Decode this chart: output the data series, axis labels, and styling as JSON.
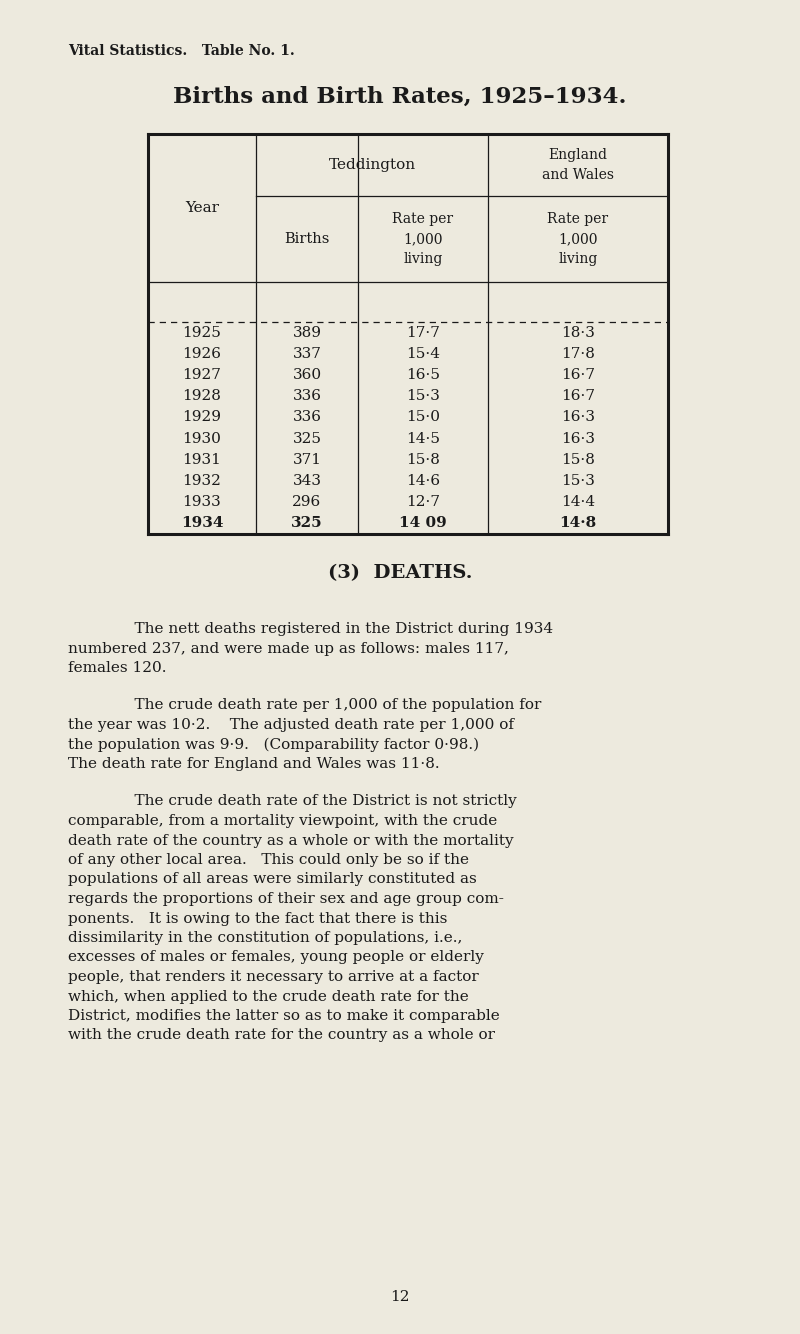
{
  "bg_color": "#edeade",
  "text_color": "#1a1a1a",
  "top_label": "Vital Statistics.   Table No. 1.",
  "title": "Births and Birth Rates, 1925–1934.",
  "teddington_label": "Teddington",
  "england_label": "England\nand Wales",
  "births_label": "Births",
  "rate_label": "Rate per\n1,000\nliving",
  "year_label": "Year",
  "years": [
    "1925",
    "1926",
    "1927",
    "1928",
    "1929",
    "1930",
    "1931",
    "1932",
    "1933",
    "1934"
  ],
  "births": [
    "389",
    "337",
    "360",
    "336",
    "336",
    "325",
    "371",
    "343",
    "296",
    "325"
  ],
  "tedd_rates": [
    "17·7",
    "15·4",
    "16·5",
    "15·3",
    "15·0",
    "14·5",
    "15·8",
    "14·6",
    "12·7",
    "14 09"
  ],
  "eng_rates": [
    "18·3",
    "17·8",
    "16·7",
    "16·7",
    "16·3",
    "16·3",
    "15·8",
    "15·3",
    "14·4",
    "14·8"
  ],
  "deaths_heading": "(3)  DEATHS.",
  "para1_indent": "    The nett deaths registered in the District during 1934",
  "para1_rest": "numbered 237, and were made up as follows: males 117,\nfemales 120.",
  "para2_indent": "    The crude death rate per 1,000 of the population for",
  "para2_rest": "the year was 10·2.    The adjusted death rate per 1,000 of\nthe population was 9·9.   (Comparability factor 0·98.)\nThe death rate for England and Wales was 11·8.",
  "para3_indent": "    The crude death rate of the District is not strictly",
  "para3_rest": "comparable, from a mortality viewpoint, with the crude\ndeath rate of the country as a whole or with the mortality\nof any other local area.   This could only be so if the\npopulations of all areas were similarly constituted as\nregards the proportions of their sex and age group com-\nponents.   It is owing to the fact that there is this\ndissimilarity in the constitution of populations, i.e.,\nexcesses of males or females, young people or elderly\npeople, that renders it necessary to arrive at a factor\nwhich, when applied to the crude death rate for the\nDistrict, modifies the latter so as to make it comparable\nwith the crude death rate for the country as a whole or",
  "page_number": "12"
}
